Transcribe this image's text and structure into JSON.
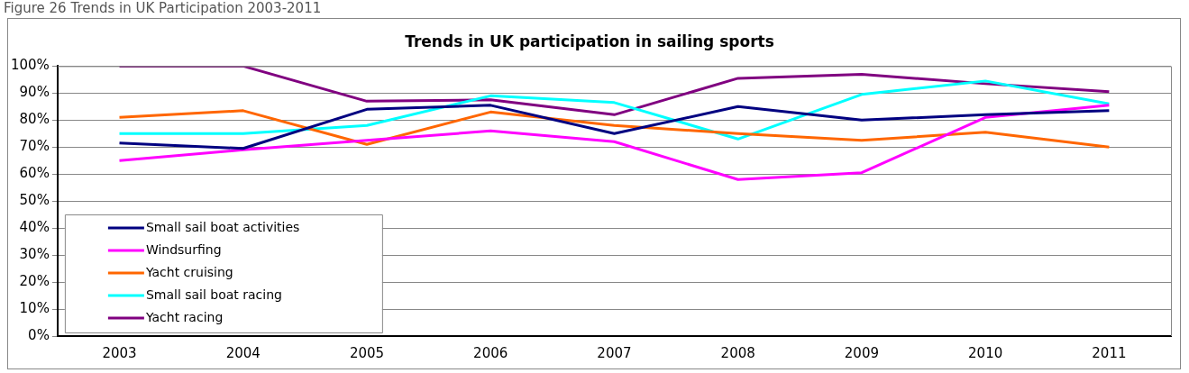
{
  "chart_data": {
    "type": "line",
    "title": "Trends in UK participation in sailing sports",
    "annotations": [
      "Figure 26 Trends in UK Participation 2003-2011"
    ],
    "categories": [
      "2003",
      "2004",
      "2005",
      "2006",
      "2007",
      "2008",
      "2009",
      "2010",
      "2011"
    ],
    "series": [
      {
        "name": "Small sail boat activities",
        "color": "#000080",
        "values": [
          71.5,
          69.5,
          84,
          85.5,
          75,
          85,
          80,
          82,
          83.5
        ]
      },
      {
        "name": "Windsurfing",
        "color": "#ff00ff",
        "values": [
          65,
          69,
          72.5,
          76,
          72,
          58,
          60.5,
          81,
          85.5
        ]
      },
      {
        "name": "Yacht cruising",
        "color": "#ff6600",
        "values": [
          81,
          83.5,
          71,
          83,
          78,
          75,
          72.5,
          75.5,
          70
        ]
      },
      {
        "name": "Small sail boat racing",
        "color": "#00ffff",
        "values": [
          75,
          75,
          78,
          89,
          86.5,
          73,
          89.5,
          94.5,
          86
        ]
      },
      {
        "name": "Yacht racing",
        "color": "#800080",
        "values": [
          100,
          100,
          87,
          87.5,
          82,
          95.5,
          97,
          93.5,
          90.5
        ]
      }
    ],
    "ylim": [
      0,
      100
    ],
    "yticks": [
      {
        "value": 0,
        "label": "0%"
      },
      {
        "value": 10,
        "label": "10%"
      },
      {
        "value": 20,
        "label": "20%"
      },
      {
        "value": 30,
        "label": "30%"
      },
      {
        "value": 40,
        "label": "40%"
      },
      {
        "value": 50,
        "label": "50%"
      },
      {
        "value": 60,
        "label": "60%"
      },
      {
        "value": 70,
        "label": "70%"
      },
      {
        "value": 80,
        "label": "80%"
      },
      {
        "value": 90,
        "label": "90%"
      },
      {
        "value": 100,
        "label": "100%"
      }
    ],
    "grid": "y",
    "legend": "bottom left",
    "marker": "none",
    "line_style": "solid"
  }
}
